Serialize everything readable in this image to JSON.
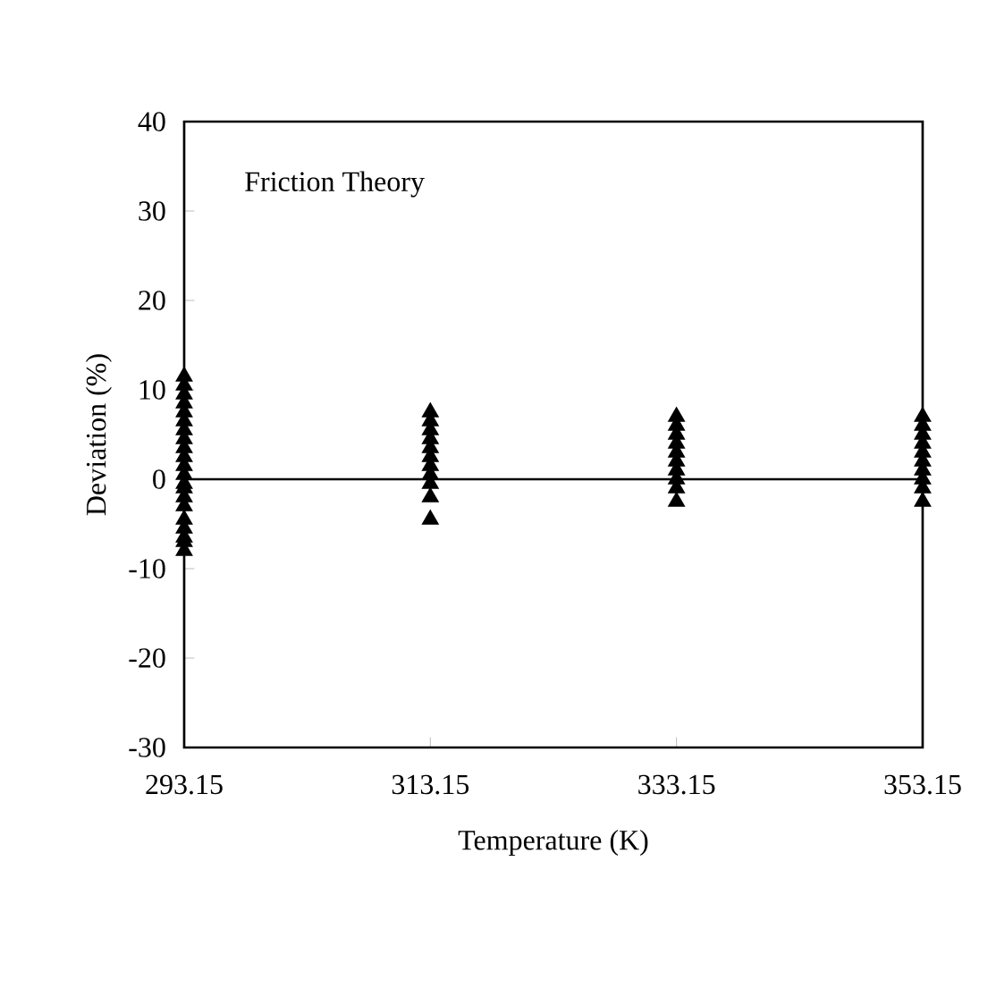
{
  "chart_data": {
    "type": "scatter",
    "xlabel": "Temperature  (K)",
    "ylabel": "Deviation (%)",
    "annotations": [
      "Friction Theory"
    ],
    "xlim": [
      293.15,
      353.15
    ],
    "xticks": [
      293.15,
      313.15,
      333.15,
      353.15
    ],
    "ylim": [
      -30,
      40
    ],
    "yticks": [
      -30,
      -20,
      -10,
      0,
      10,
      20,
      30,
      40
    ],
    "grid": false,
    "marker": "triangle",
    "ref_lines": [
      {
        "axis": "y",
        "value": 0,
        "color": "#000000"
      }
    ],
    "series": [
      {
        "color": "#000000",
        "x": [
          293.15,
          293.15,
          293.15,
          293.15,
          293.15,
          293.15,
          293.15,
          293.15,
          293.15,
          293.15,
          293.15,
          293.15,
          293.15,
          313.15,
          313.15,
          313.15,
          313.15,
          313.15,
          313.15,
          313.15,
          313.15,
          313.15,
          333.15,
          333.15,
          333.15,
          333.15,
          333.15,
          333.15,
          333.15,
          333.15,
          333.15,
          353.15,
          353.15,
          353.15,
          353.15,
          353.15,
          353.15,
          353.15,
          353.15,
          353.15
        ],
        "values": [
          11.5,
          10.5,
          9.5,
          8.5,
          7.5,
          6.5,
          5.5,
          4.5,
          3.5,
          2.5,
          1.5,
          0.5,
          -0.5,
          7.5,
          6.5,
          5.5,
          4.5,
          3.5,
          2.5,
          1.5,
          0.5,
          -0.5,
          7,
          6,
          5,
          4,
          3,
          2,
          1,
          0,
          -1,
          7,
          6,
          5,
          4,
          3,
          2,
          1,
          0,
          -1
        ]
      },
      {
        "color": "#000000",
        "x": [
          293.15,
          293.15,
          293.15,
          293.15,
          293.15,
          293.15,
          293.15,
          293.15,
          313.15,
          313.15,
          333.15,
          353.15
        ],
        "values": [
          -1,
          -2,
          -3,
          -4.5,
          -5.5,
          -6.5,
          -7,
          -8,
          -2,
          -4.5,
          -2.5,
          -2.5
        ]
      }
    ]
  }
}
